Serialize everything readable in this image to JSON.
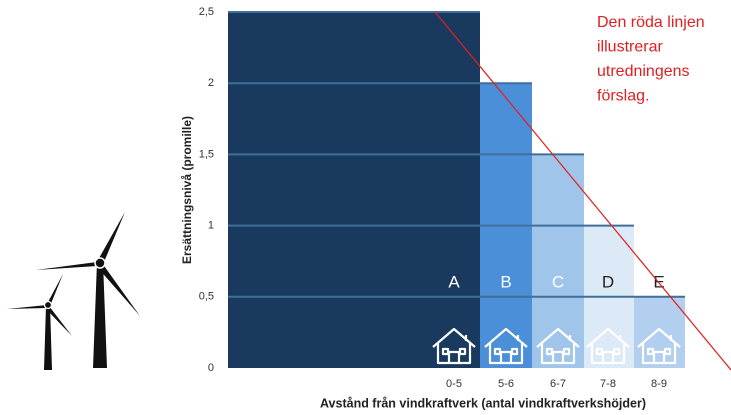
{
  "chart_data": {
    "type": "bar",
    "x_label": "Avstånd från vindkraftverk (antal vindkraftverkshöjder)",
    "y_label": "Ersättningsnivå  (promille)",
    "categories": [
      "0-5",
      "5-6",
      "6-7",
      "7-8",
      "8-9"
    ],
    "bar_labels": [
      "A",
      "B",
      "C",
      "D",
      "E"
    ],
    "values": [
      2.5,
      2,
      1.5,
      1,
      0.5
    ],
    "colors": [
      "#193a5e",
      "#4a8fd8",
      "#a0c5ea",
      "#dce9f6",
      "#b3cfef"
    ],
    "ylim": [
      0,
      2.5
    ],
    "yticks": [
      0,
      {
        "value": 0.5,
        "label": "0,5"
      },
      1,
      {
        "value": 1.5,
        "label": "1,5"
      },
      2,
      {
        "value": 2.5,
        "label": "2,5"
      }
    ],
    "grid": true,
    "annotation": [
      "Den röda linjen",
      "illustrerar",
      "utredningens",
      "förslag."
    ]
  }
}
